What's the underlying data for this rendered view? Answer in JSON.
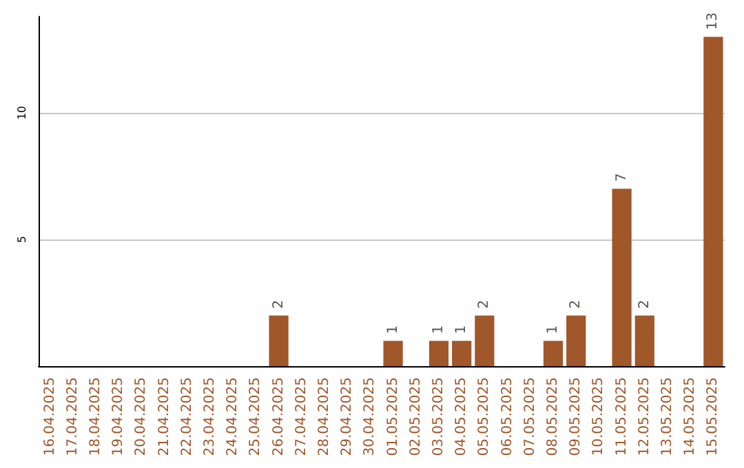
{
  "chart_data": {
    "type": "bar",
    "categories": [
      "16.04.2025",
      "17.04.2025",
      "18.04.2025",
      "19.04.2025",
      "20.04.2025",
      "21.04.2025",
      "22.04.2025",
      "23.04.2025",
      "24.04.2025",
      "25.04.2025",
      "26.04.2025",
      "27.04.2025",
      "28.04.2025",
      "29.04.2025",
      "30.04.2025",
      "01.05.2025",
      "02.05.2025",
      "03.05.2025",
      "04.05.2025",
      "05.05.2025",
      "06.05.2025",
      "07.05.2025",
      "08.05.2025",
      "09.05.2025",
      "10.05.2025",
      "11.05.2025",
      "12.05.2025",
      "13.05.2025",
      "14.05.2025",
      "15.05.2025"
    ],
    "values": [
      0,
      0,
      0,
      0,
      0,
      0,
      0,
      0,
      0,
      0,
      2,
      0,
      0,
      0,
      0,
      1,
      0,
      1,
      1,
      2,
      0,
      0,
      1,
      2,
      0,
      7,
      2,
      0,
      0,
      13
    ],
    "value_labels": [
      null,
      null,
      null,
      null,
      null,
      null,
      null,
      null,
      null,
      null,
      "2",
      null,
      null,
      null,
      null,
      "1",
      null,
      "1",
      "1",
      "2",
      null,
      null,
      "1",
      "2",
      null,
      "7",
      "2",
      null,
      null,
      "13"
    ],
    "color": "#a0572a",
    "ylim": [
      0,
      13.8
    ],
    "yticks": [
      5,
      10
    ],
    "grid": "y"
  }
}
